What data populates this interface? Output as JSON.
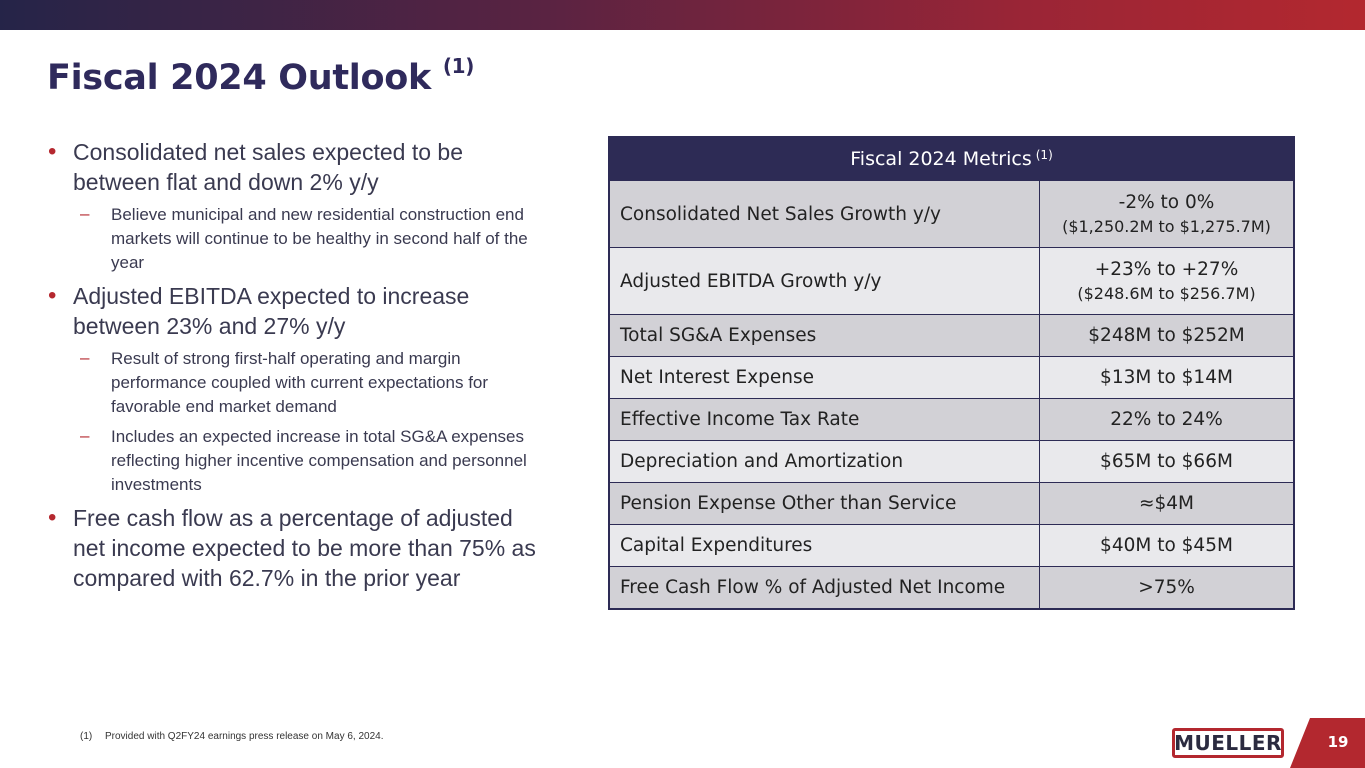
{
  "header": {
    "title": "Fiscal 2024 Outlook",
    "title_note": "(1)"
  },
  "bullets": [
    {
      "text": "Consolidated net sales expected to be between flat and down 2% y/y",
      "subs": [
        "Believe municipal and new residential construction end markets will continue to be healthy in second half of the year"
      ]
    },
    {
      "text": "Adjusted EBITDA expected to increase between 23% and 27% y/y",
      "subs": [
        "Result of strong first-half operating and margin performance coupled with current expectations for favorable end market demand",
        "Includes an expected increase in total SG&A expenses reflecting higher incentive compensation and personnel investments"
      ]
    },
    {
      "text": "Free cash flow as a percentage of adjusted net income expected to be more than 75% as compared with 62.7% in the prior year",
      "subs": []
    }
  ],
  "table": {
    "header": "Fiscal 2024 Metrics",
    "header_note": "(1)",
    "rows": [
      {
        "label": "Consolidated Net Sales Growth y/y",
        "value": "-2% to 0%",
        "sub": "($1,250.2M to $1,275.7M)"
      },
      {
        "label": "Adjusted EBITDA Growth y/y",
        "value": "+23% to +27%",
        "sub": "($248.6M to $256.7M)"
      },
      {
        "label": "Total SG&A Expenses",
        "value": "$248M to $252M"
      },
      {
        "label": "Net Interest Expense",
        "value": "$13M to $14M"
      },
      {
        "label": "Effective Income Tax Rate",
        "value": "22% to 24%"
      },
      {
        "label": "Depreciation and Amortization",
        "value": "$65M to $66M"
      },
      {
        "label": "Pension Expense Other than Service",
        "value": "≈$4M"
      },
      {
        "label": "Capital Expenditures",
        "value": "$40M to $45M"
      },
      {
        "label": "Free Cash Flow % of Adjusted Net Income",
        "value": ">75%"
      }
    ]
  },
  "footnote": {
    "num": "(1)",
    "text": "Provided with Q2FY24 earnings press release on May 6, 2024."
  },
  "footer": {
    "logo_text": "MUELLER",
    "page_number": "19"
  },
  "colors": {
    "navy": "#2d2b55",
    "red": "#b3282f"
  }
}
